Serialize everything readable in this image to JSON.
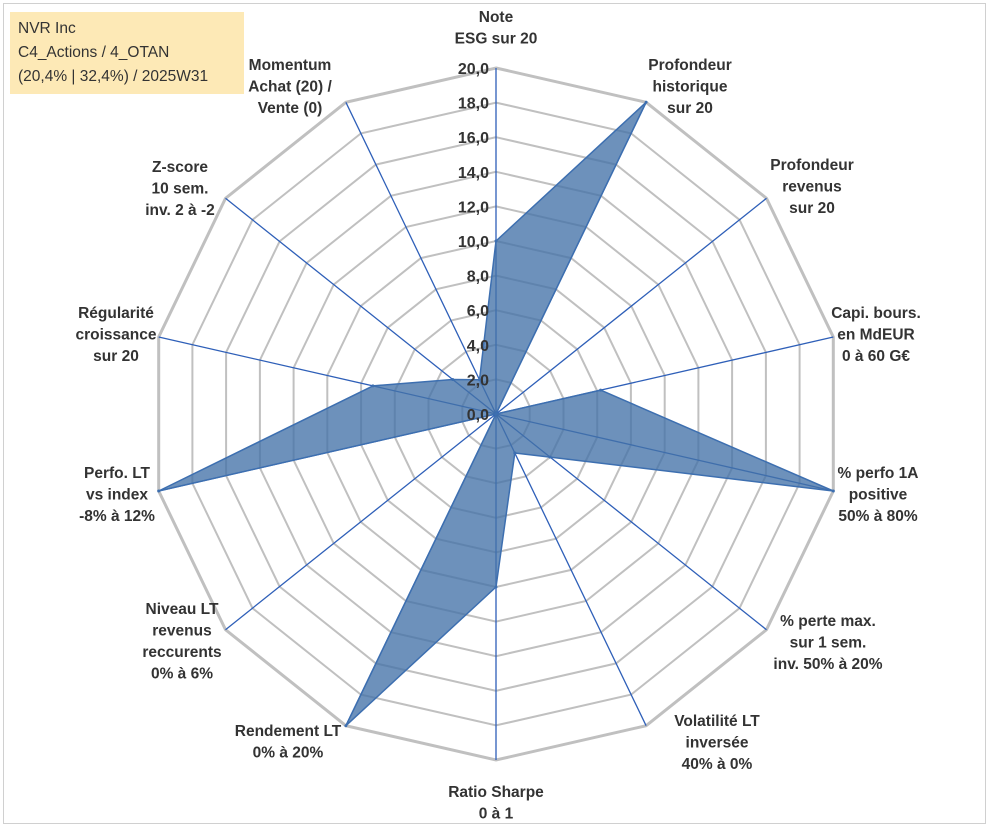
{
  "info_box": {
    "line1": "NVR Inc",
    "line2": "C4_Actions / 4_OTAN",
    "line3": "(20,4% | 32,4%) / 2025W31"
  },
  "colors": {
    "grid": "#c0c0c0",
    "spoke": "#2e5fb8",
    "fill": "#4472a8",
    "stroke": "#3d6fb0",
    "label": "#333333",
    "info_bg": "#fde9b6"
  },
  "chart_data": {
    "type": "radar",
    "rmin": 0,
    "rmax": 20,
    "ticks": [
      "0,0",
      "2,0",
      "4,0",
      "6,0",
      "8,0",
      "10,0",
      "12,0",
      "14,0",
      "16,0",
      "18,0",
      "20,0"
    ],
    "grid": true,
    "categories": [
      [
        "Note",
        "ESG sur 20"
      ],
      [
        "Profondeur",
        "historique",
        "sur 20"
      ],
      [
        "Profondeur",
        "revenus",
        "sur 20"
      ],
      [
        "Capi. bours.",
        "en MdEUR",
        "0 à 60 G€"
      ],
      [
        "% perfo 1A",
        "positive",
        "50% à 80%"
      ],
      [
        "% perte max.",
        "sur 1 sem.",
        "inv. 50% à 20%"
      ],
      [
        "Volatilité LT",
        "inversée",
        "40% à 0%"
      ],
      [
        "Ratio Sharpe",
        "0 à 1"
      ],
      [
        "Rendement LT",
        "0% à 20%"
      ],
      [
        "Niveau LT",
        "revenus",
        "reccurents",
        "0% à 6%"
      ],
      [
        "Perfo. LT",
        "vs index",
        "-8% à 12%"
      ],
      [
        "Régularité",
        "croissance",
        "sur 20"
      ],
      [
        "Z-score",
        "10 sem.",
        "inv. 2 à -2"
      ],
      [
        "Momentum",
        "Achat (20) /",
        "Vente (0)"
      ]
    ],
    "values": [
      10.0,
      20.0,
      0.0,
      6.2,
      20.0,
      4.0,
      2.5,
      10.0,
      20.0,
      0.0,
      20.0,
      7.3,
      3.2,
      2.2
    ]
  }
}
